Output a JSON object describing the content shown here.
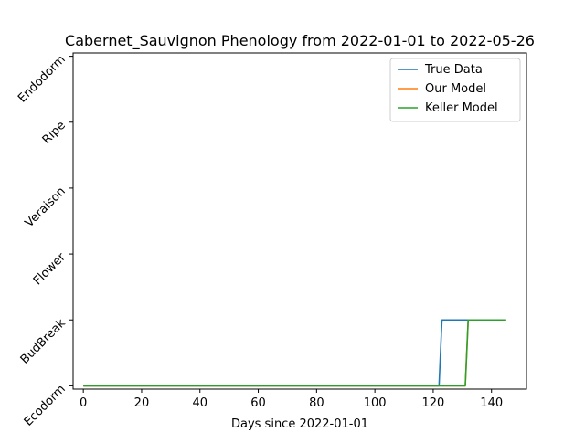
{
  "chart_data": {
    "type": "line",
    "title": "Cabernet_Sauvignon Phenology from 2022-01-01 to 2022-05-26",
    "xlabel": "Days since 2022-01-01",
    "ylabel": "",
    "xlim": [
      -3.5,
      152
    ],
    "ylim": [
      -0.05,
      5.05
    ],
    "xticks": [
      0,
      20,
      40,
      60,
      80,
      100,
      120,
      140
    ],
    "ytick_labels": [
      "Ecodorm",
      "BudBreak",
      "Flower",
      "Veraison",
      "Ripe",
      "Endodorm"
    ],
    "grid": false,
    "legend_position": "top-right",
    "series": [
      {
        "name": "True Data",
        "color": "#1f77b4",
        "x": [
          0,
          122,
          123,
          145
        ],
        "y": [
          0,
          0,
          1,
          1
        ]
      },
      {
        "name": "Our Model",
        "color": "#ff7f0e",
        "x": [
          0,
          131,
          132,
          145
        ],
        "y": [
          0,
          0,
          1,
          1
        ]
      },
      {
        "name": "Keller Model",
        "color": "#2ca02c",
        "x": [
          0,
          131,
          132,
          145
        ],
        "y": [
          0,
          0,
          1,
          1
        ]
      }
    ]
  }
}
